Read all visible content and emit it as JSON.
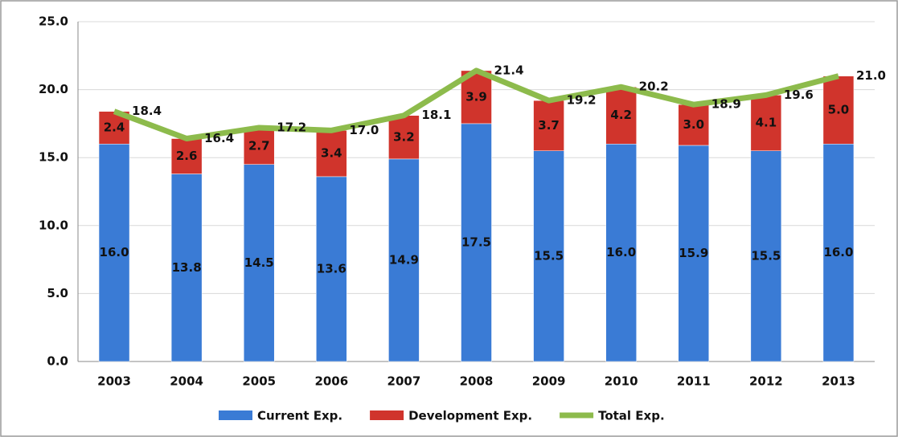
{
  "chart_data": {
    "type": "bar",
    "stacked": true,
    "categories": [
      "2003",
      "2004",
      "2005",
      "2006",
      "2007",
      "2008",
      "2009",
      "2010",
      "2011",
      "2012",
      "2013"
    ],
    "series": [
      {
        "name": "Current Exp.",
        "color": "#3a7bd5",
        "values": [
          16.0,
          13.8,
          14.5,
          13.6,
          14.9,
          17.5,
          15.5,
          16.0,
          15.9,
          15.5,
          16.0
        ],
        "value_labels": [
          "16.0",
          "13.8",
          "14.5",
          "13.6",
          "14.9",
          "17.5",
          "15.5",
          "16.0",
          "15.9",
          "15.5",
          "16.0"
        ]
      },
      {
        "name": "Development Exp.",
        "color": "#d0342c",
        "values": [
          2.4,
          2.6,
          2.7,
          3.4,
          3.2,
          3.9,
          3.7,
          4.2,
          3.0,
          4.1,
          5.0
        ],
        "value_labels": [
          "2.4",
          "2.6",
          "2.7",
          "3.4",
          "3.2",
          "3.9",
          "3.7",
          "4.2",
          "3.0",
          "4.1",
          "5.0"
        ]
      },
      {
        "name": "Total Exp.",
        "color": "#8dbb4c",
        "type": "line",
        "values": [
          18.4,
          16.4,
          17.2,
          17.0,
          18.1,
          21.4,
          19.2,
          20.2,
          18.9,
          19.6,
          21.0
        ],
        "value_labels": [
          "18.4",
          "16.4",
          "17.2",
          "17.0",
          "18.1",
          "21.4",
          "19.2",
          "20.2",
          "18.9",
          "19.6",
          "21.0"
        ]
      }
    ],
    "ylim": [
      0,
      25
    ],
    "yticks": [
      {
        "value": 0,
        "label": "0.0"
      },
      {
        "value": 5,
        "label": "5.0"
      },
      {
        "value": 10,
        "label": "10.0"
      },
      {
        "value": 15,
        "label": "15.0"
      },
      {
        "value": 20,
        "label": "20.0"
      },
      {
        "value": 25,
        "label": "25.0"
      }
    ],
    "grid": true
  }
}
